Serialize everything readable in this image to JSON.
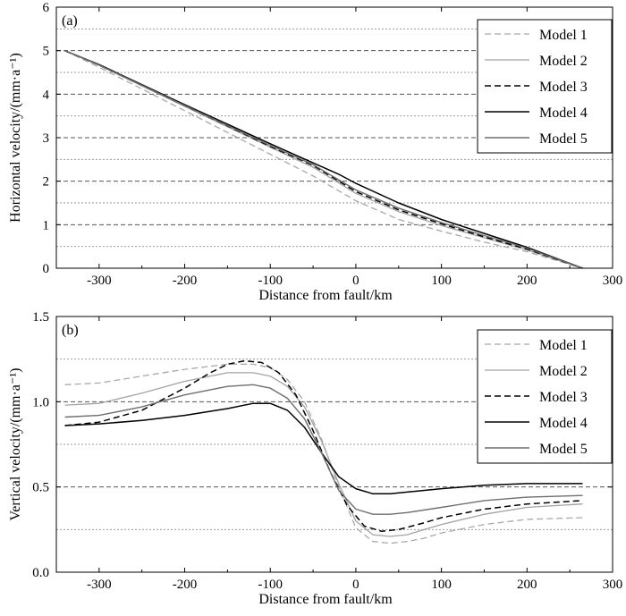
{
  "styles": {
    "Model 1": {
      "color": "#a8a8a8",
      "dash": "7,4",
      "width": 1.3
    },
    "Model 2": {
      "color": "#a3a3a3",
      "dash": "",
      "width": 1.3
    },
    "Model 3": {
      "color": "#000000",
      "dash": "7,4",
      "width": 1.5
    },
    "Model 4": {
      "color": "#000000",
      "dash": "",
      "width": 1.5
    },
    "Model 5": {
      "color": "#6e6e6e",
      "dash": "",
      "width": 1.4
    }
  },
  "chart_data": [
    {
      "type": "line",
      "panel": "(a)",
      "xlabel": "Distance from fault/km",
      "ylabel": "Horizontal velocity/(mm·a⁻¹)",
      "xlim": [
        -350,
        300
      ],
      "ylim": [
        0,
        6
      ],
      "xticks": [
        -300,
        -200,
        -100,
        0,
        100,
        200,
        300
      ],
      "xtick_labels": [
        "-300",
        "-200",
        "-100",
        "0",
        "100",
        "200",
        "300"
      ],
      "yticks": [
        0,
        1,
        2,
        3,
        4,
        5,
        6
      ],
      "ytick_labels": [
        "0",
        "1",
        "2",
        "3",
        "4",
        "5",
        "6"
      ],
      "grid_major": [
        1,
        2,
        3,
        4,
        5
      ],
      "grid_minor": [
        0.5,
        1.5,
        2.5,
        3.5,
        4.5,
        5.5
      ],
      "legend": "top-right",
      "series": [
        {
          "name": "Model 1",
          "x": [
            -340,
            -300,
            -200,
            -100,
            -50,
            0,
            50,
            100,
            150,
            200,
            265
          ],
          "y": [
            5.0,
            4.62,
            3.62,
            2.62,
            2.12,
            1.55,
            1.12,
            0.85,
            0.6,
            0.38,
            0.0
          ]
        },
        {
          "name": "Model 2",
          "x": [
            -340,
            -300,
            -200,
            -100,
            -50,
            0,
            50,
            100,
            150,
            200,
            265
          ],
          "y": [
            5.0,
            4.66,
            3.72,
            2.78,
            2.32,
            1.72,
            1.3,
            0.98,
            0.7,
            0.42,
            0.0
          ]
        },
        {
          "name": "Model 3",
          "x": [
            -340,
            -300,
            -200,
            -100,
            -50,
            0,
            50,
            100,
            150,
            200,
            265
          ],
          "y": [
            5.0,
            4.67,
            3.74,
            2.8,
            2.36,
            1.76,
            1.34,
            1.02,
            0.72,
            0.44,
            0.0
          ]
        },
        {
          "name": "Model 4",
          "x": [
            -340,
            -300,
            -200,
            -100,
            -50,
            -20,
            0,
            50,
            100,
            150,
            200,
            265
          ],
          "y": [
            5.0,
            4.68,
            3.76,
            2.86,
            2.42,
            2.16,
            1.95,
            1.5,
            1.12,
            0.8,
            0.48,
            0.0
          ]
        },
        {
          "name": "Model 5",
          "x": [
            -340,
            -300,
            -200,
            -100,
            -50,
            0,
            50,
            100,
            150,
            200,
            265
          ],
          "y": [
            5.0,
            4.67,
            3.74,
            2.82,
            2.38,
            1.8,
            1.38,
            1.05,
            0.75,
            0.46,
            0.0
          ]
        }
      ]
    },
    {
      "type": "line",
      "panel": "(b)",
      "xlabel": "Distance from fault/km",
      "ylabel": "Vertical velocity/(mm·a⁻¹)",
      "xlim": [
        -350,
        300
      ],
      "ylim": [
        0.0,
        1.5
      ],
      "xticks": [
        -300,
        -200,
        -100,
        0,
        100,
        200,
        300
      ],
      "xtick_labels": [
        "-300",
        "-200",
        "-100",
        "0",
        "100",
        "200",
        "300"
      ],
      "yticks": [
        0.0,
        0.5,
        1.0,
        1.5
      ],
      "ytick_labels": [
        "0.0",
        "0.5",
        "1.0",
        "1.5"
      ],
      "grid_major": [
        0.5,
        1.0
      ],
      "grid_minor": [
        0.25,
        0.75,
        1.25
      ],
      "legend": "top-right",
      "series": [
        {
          "name": "Model 1",
          "x": [
            -340,
            -300,
            -250,
            -200,
            -150,
            -120,
            -100,
            -80,
            -60,
            -40,
            -20,
            0,
            20,
            40,
            60,
            80,
            100,
            150,
            200,
            265
          ],
          "y": [
            1.1,
            1.11,
            1.15,
            1.19,
            1.22,
            1.22,
            1.2,
            1.13,
            1.0,
            0.78,
            0.5,
            0.26,
            0.18,
            0.17,
            0.18,
            0.2,
            0.23,
            0.28,
            0.31,
            0.32
          ]
        },
        {
          "name": "Model 2",
          "x": [
            -340,
            -300,
            -250,
            -200,
            -150,
            -120,
            -100,
            -80,
            -60,
            -40,
            -20,
            0,
            20,
            40,
            60,
            80,
            100,
            150,
            200,
            265
          ],
          "y": [
            0.98,
            0.99,
            1.05,
            1.12,
            1.17,
            1.17,
            1.15,
            1.09,
            0.97,
            0.77,
            0.52,
            0.3,
            0.22,
            0.21,
            0.22,
            0.25,
            0.28,
            0.34,
            0.38,
            0.4
          ]
        },
        {
          "name": "Model 3",
          "x": [
            -340,
            -300,
            -250,
            -200,
            -170,
            -150,
            -130,
            -110,
            -90,
            -70,
            -50,
            -30,
            -10,
            10,
            30,
            50,
            80,
            100,
            150,
            200,
            265
          ],
          "y": [
            0.86,
            0.88,
            0.95,
            1.08,
            1.17,
            1.22,
            1.24,
            1.23,
            1.17,
            1.04,
            0.83,
            0.59,
            0.39,
            0.27,
            0.24,
            0.25,
            0.29,
            0.32,
            0.37,
            0.4,
            0.42
          ]
        },
        {
          "name": "Model 4",
          "x": [
            -340,
            -300,
            -250,
            -200,
            -150,
            -120,
            -100,
            -80,
            -60,
            -40,
            -20,
            0,
            20,
            40,
            60,
            100,
            150,
            200,
            265
          ],
          "y": [
            0.86,
            0.87,
            0.89,
            0.92,
            0.96,
            0.99,
            0.99,
            0.95,
            0.85,
            0.7,
            0.56,
            0.49,
            0.46,
            0.46,
            0.47,
            0.49,
            0.51,
            0.52,
            0.52
          ]
        },
        {
          "name": "Model 5",
          "x": [
            -340,
            -300,
            -250,
            -200,
            -150,
            -120,
            -100,
            -80,
            -60,
            -40,
            -20,
            0,
            20,
            40,
            60,
            100,
            150,
            200,
            265
          ],
          "y": [
            0.91,
            0.92,
            0.97,
            1.04,
            1.09,
            1.1,
            1.08,
            1.02,
            0.9,
            0.7,
            0.48,
            0.37,
            0.34,
            0.34,
            0.35,
            0.38,
            0.42,
            0.44,
            0.45
          ]
        }
      ]
    }
  ]
}
